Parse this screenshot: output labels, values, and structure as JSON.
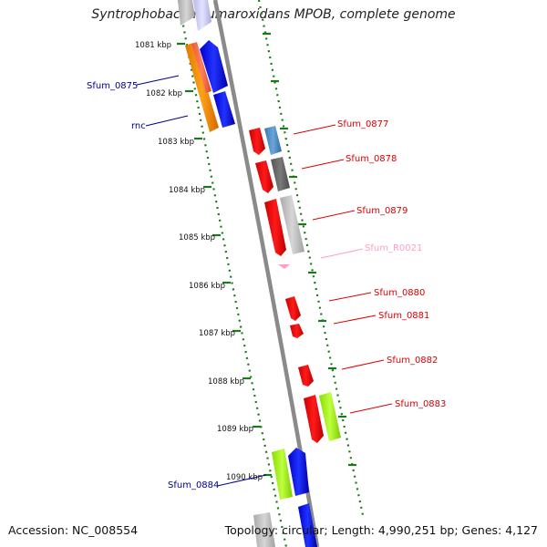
{
  "title": "Syntrophobacter fumaroxidans MPOB, complete genome",
  "footer": {
    "accession": "Accession: NC_008554",
    "summary": "Topology: circular; Length: 4,990,251 bp; Genes: 4,127"
  },
  "colors": {
    "backbone": "#8a8a8a",
    "ticks": "#1a7a1a",
    "label_blue": "#00008b",
    "label_red": "#dd0000",
    "label_pink": "#ff9ec8"
  },
  "positions": [
    {
      "label": "1081 kbp"
    },
    {
      "label": "1082 kbp"
    },
    {
      "label": "1083 kbp"
    },
    {
      "label": "1084 kbp"
    },
    {
      "label": "1085 kbp"
    },
    {
      "label": "1086 kbp"
    },
    {
      "label": "1087 kbp"
    },
    {
      "label": "1088 kbp"
    },
    {
      "label": "1089 kbp"
    },
    {
      "label": "1090 kbp"
    }
  ],
  "gene_labels": [
    {
      "name": "Sfum_0875",
      "color": "#00008b"
    },
    {
      "name": "rnc",
      "color": "#00008b"
    },
    {
      "name": "Sfum_0877",
      "color": "#dd0000"
    },
    {
      "name": "Sfum_0878",
      "color": "#dd0000"
    },
    {
      "name": "Sfum_0879",
      "color": "#dd0000"
    },
    {
      "name": "Sfum_R0021",
      "color": "#ff9ec8"
    },
    {
      "name": "Sfum_0880",
      "color": "#dd0000"
    },
    {
      "name": "Sfum_0881",
      "color": "#dd0000"
    },
    {
      "name": "Sfum_0882",
      "color": "#dd0000"
    },
    {
      "name": "Sfum_0883",
      "color": "#dd0000"
    },
    {
      "name": "Sfum_0884",
      "color": "#00008b"
    }
  ]
}
